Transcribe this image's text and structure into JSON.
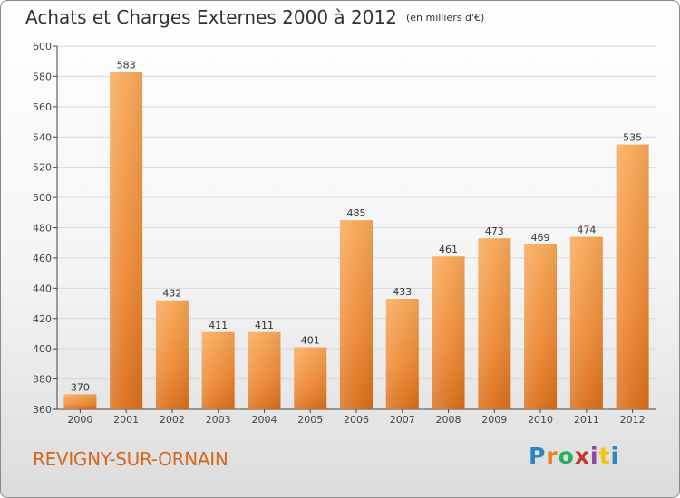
{
  "title": "Achats et Charges Externes 2000 à 2012",
  "title_unit": "(en milliers d'€)",
  "city": "REVIGNY-SUR-ORNAIN",
  "logo": {
    "text": "Proxiti",
    "letters": [
      "P",
      "r",
      "o",
      "x",
      "i",
      "t",
      "i"
    ]
  },
  "colors": {
    "bar": "#f0892d",
    "bar_light": "#f6aa5c",
    "grid": "#d8d8d8",
    "axis": "#444444",
    "title": "#333333",
    "city": "#d2691e"
  },
  "chart_data": {
    "type": "bar",
    "title": "Achats et Charges Externes 2000 à 2012",
    "subtitle": "(en milliers d'€)",
    "xlabel": "",
    "ylabel": "",
    "categories": [
      "2000",
      "2001",
      "2002",
      "2003",
      "2004",
      "2005",
      "2006",
      "2007",
      "2008",
      "2009",
      "2010",
      "2011",
      "2012"
    ],
    "values": [
      370,
      583,
      432,
      411,
      411,
      401,
      485,
      433,
      461,
      473,
      469,
      474,
      535
    ],
    "ylim": [
      360,
      600
    ],
    "yticks": [
      360,
      380,
      400,
      420,
      440,
      460,
      480,
      500,
      520,
      540,
      560,
      580,
      600
    ],
    "grid": true,
    "data_labels": true
  }
}
